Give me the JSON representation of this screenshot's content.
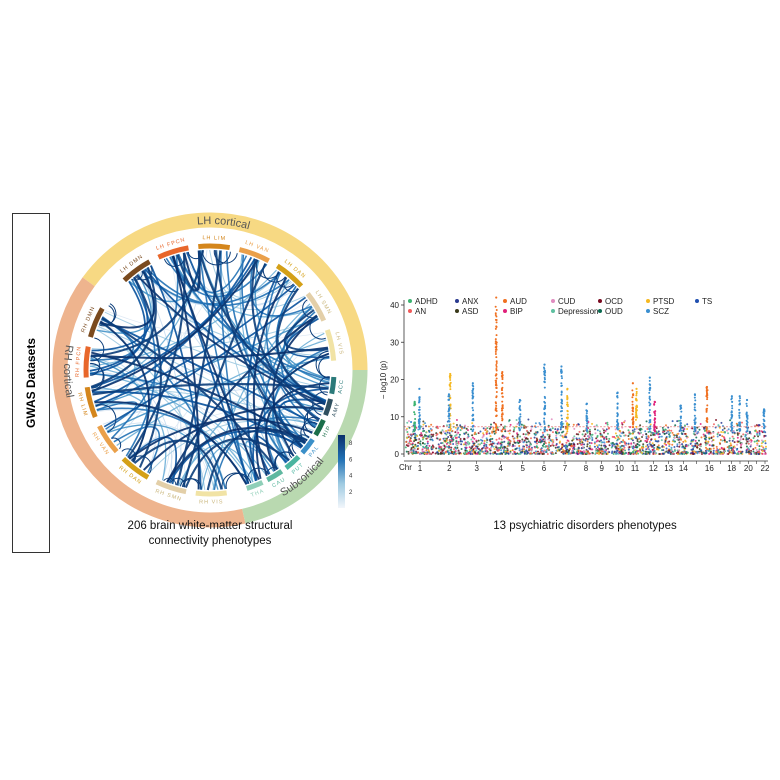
{
  "side_label": "GWAS Datasets",
  "chord": {
    "rings": [
      {
        "label": "LH cortical",
        "color": "#f7d983"
      },
      {
        "label": "Subcortical",
        "color": "#b9d9b0"
      },
      {
        "label": "RH cortical",
        "color": "#eeb48e"
      }
    ],
    "lh_segments": [
      {
        "label": "LH DMN",
        "color": "#7a4a1e"
      },
      {
        "label": "LH FPCN",
        "color": "#e8672b"
      },
      {
        "label": "LH LIM",
        "color": "#d4861c"
      },
      {
        "label": "LH VAN",
        "color": "#eaa04a"
      },
      {
        "label": "LH DAN",
        "color": "#d4a017"
      },
      {
        "label": "LH SMN",
        "color": "#e3cfa8"
      },
      {
        "label": "LH VIS",
        "color": "#f1e3a5"
      }
    ],
    "sub_segments": [
      {
        "label": "Acc",
        "color": "#2b7a7a"
      },
      {
        "label": "Amy",
        "color": "#2f4f5f"
      },
      {
        "label": "Hip",
        "color": "#1b6e4a"
      },
      {
        "label": "Pal",
        "color": "#3a8fc8"
      },
      {
        "label": "Put",
        "color": "#4ab5a0"
      },
      {
        "label": "Cau",
        "color": "#5fb8a0"
      },
      {
        "label": "Tha",
        "color": "#8fcfb8"
      }
    ],
    "rh_segments": [
      {
        "label": "RH DMN",
        "color": "#7a4a1e"
      },
      {
        "label": "RH FPCN",
        "color": "#e8672b"
      },
      {
        "label": "RH LIM",
        "color": "#d4861c"
      },
      {
        "label": "RH VAN",
        "color": "#eaa04a"
      },
      {
        "label": "RH DAN",
        "color": "#d4a017"
      },
      {
        "label": "RH SMN",
        "color": "#e3cfa8"
      },
      {
        "label": "RH VIS",
        "color": "#f1e3a5"
      }
    ],
    "colorbar": {
      "ticks": [
        "2",
        "4",
        "6",
        "8"
      ],
      "min": 0,
      "max": 9,
      "colors": [
        "#f2f6fb",
        "#9ecae1",
        "#2171b5",
        "#08306b"
      ]
    },
    "caption_line1": "206 brain white-matter structural",
    "caption_line2": "connectivity phenotypes"
  },
  "chart_data": {
    "type": "scatter",
    "subtype": "manhattan",
    "title": "",
    "caption": "13 psychiatric disorders phenotypes",
    "xlabel": "Chr",
    "ylabel": "− log10 (p)",
    "ylim": [
      0,
      42
    ],
    "yticks": [
      "0",
      "10",
      "20",
      "30",
      "40"
    ],
    "threshold": 7.3,
    "chromosomes": [
      "1",
      "2",
      "3",
      "4",
      "5",
      "6",
      "7",
      "8",
      "9",
      "10",
      "11",
      "12",
      "13",
      "14",
      "15",
      "16",
      "17",
      "18",
      "19",
      "20",
      "21",
      "22"
    ],
    "xtick_labels": [
      "1",
      "2",
      "3",
      "4",
      "5",
      "6",
      "7",
      "8",
      "9",
      "10",
      "11",
      "12",
      "13",
      "14",
      "16",
      "18",
      "20",
      "22"
    ],
    "legend": [
      {
        "name": "ADHD",
        "color": "#3cb371"
      },
      {
        "name": "ANX",
        "color": "#2a3a8f"
      },
      {
        "name": "AUD",
        "color": "#f07020"
      },
      {
        "name": "CUD",
        "color": "#e08cc0"
      },
      {
        "name": "OCD",
        "color": "#7a0a20"
      },
      {
        "name": "PTSD",
        "color": "#f5b820"
      },
      {
        "name": "TS",
        "color": "#2050b0"
      },
      {
        "name": "AN",
        "color": "#f05a5a"
      },
      {
        "name": "ASD",
        "color": "#3a3a1a"
      },
      {
        "name": "BIP",
        "color": "#e0207a"
      },
      {
        "name": "Depression",
        "color": "#5ec0a0"
      },
      {
        "name": "OUD",
        "color": "#0a6a50"
      },
      {
        "name": "SCZ",
        "color": "#3a8fd0"
      }
    ],
    "peaks": [
      {
        "chr": "1",
        "trait": "ADHD",
        "value": 14
      },
      {
        "chr": "1",
        "trait": "SCZ",
        "value": 17.5
      },
      {
        "chr": "2",
        "trait": "PTSD",
        "value": 21.5
      },
      {
        "chr": "2",
        "trait": "SCZ",
        "value": 16
      },
      {
        "chr": "3",
        "trait": "SCZ",
        "value": 19
      },
      {
        "chr": "4",
        "trait": "AUD",
        "value": 42
      },
      {
        "chr": "4",
        "trait": "AUD",
        "value": 22
      },
      {
        "chr": "5",
        "trait": "SCZ",
        "value": 14.5
      },
      {
        "chr": "6",
        "trait": "SCZ",
        "value": 24
      },
      {
        "chr": "7",
        "trait": "SCZ",
        "value": 23.5
      },
      {
        "chr": "7",
        "trait": "PTSD",
        "value": 17.5
      },
      {
        "chr": "8",
        "trait": "SCZ",
        "value": 13.5
      },
      {
        "chr": "10",
        "trait": "SCZ",
        "value": 16.5
      },
      {
        "chr": "11",
        "trait": "PTSD",
        "value": 17.5
      },
      {
        "chr": "11",
        "trait": "AUD",
        "value": 19
      },
      {
        "chr": "12",
        "trait": "SCZ",
        "value": 20.5
      },
      {
        "chr": "12",
        "trait": "BIP",
        "value": 14
      },
      {
        "chr": "14",
        "trait": "SCZ",
        "value": 13
      },
      {
        "chr": "15",
        "trait": "SCZ",
        "value": 16
      },
      {
        "chr": "16",
        "trait": "AUD",
        "value": 18
      },
      {
        "chr": "18",
        "trait": "SCZ",
        "value": 15.5
      },
      {
        "chr": "19",
        "trait": "SCZ",
        "value": 15.5
      },
      {
        "chr": "20",
        "trait": "SCZ",
        "value": 14.5
      },
      {
        "chr": "22",
        "trait": "SCZ",
        "value": 12
      }
    ]
  }
}
